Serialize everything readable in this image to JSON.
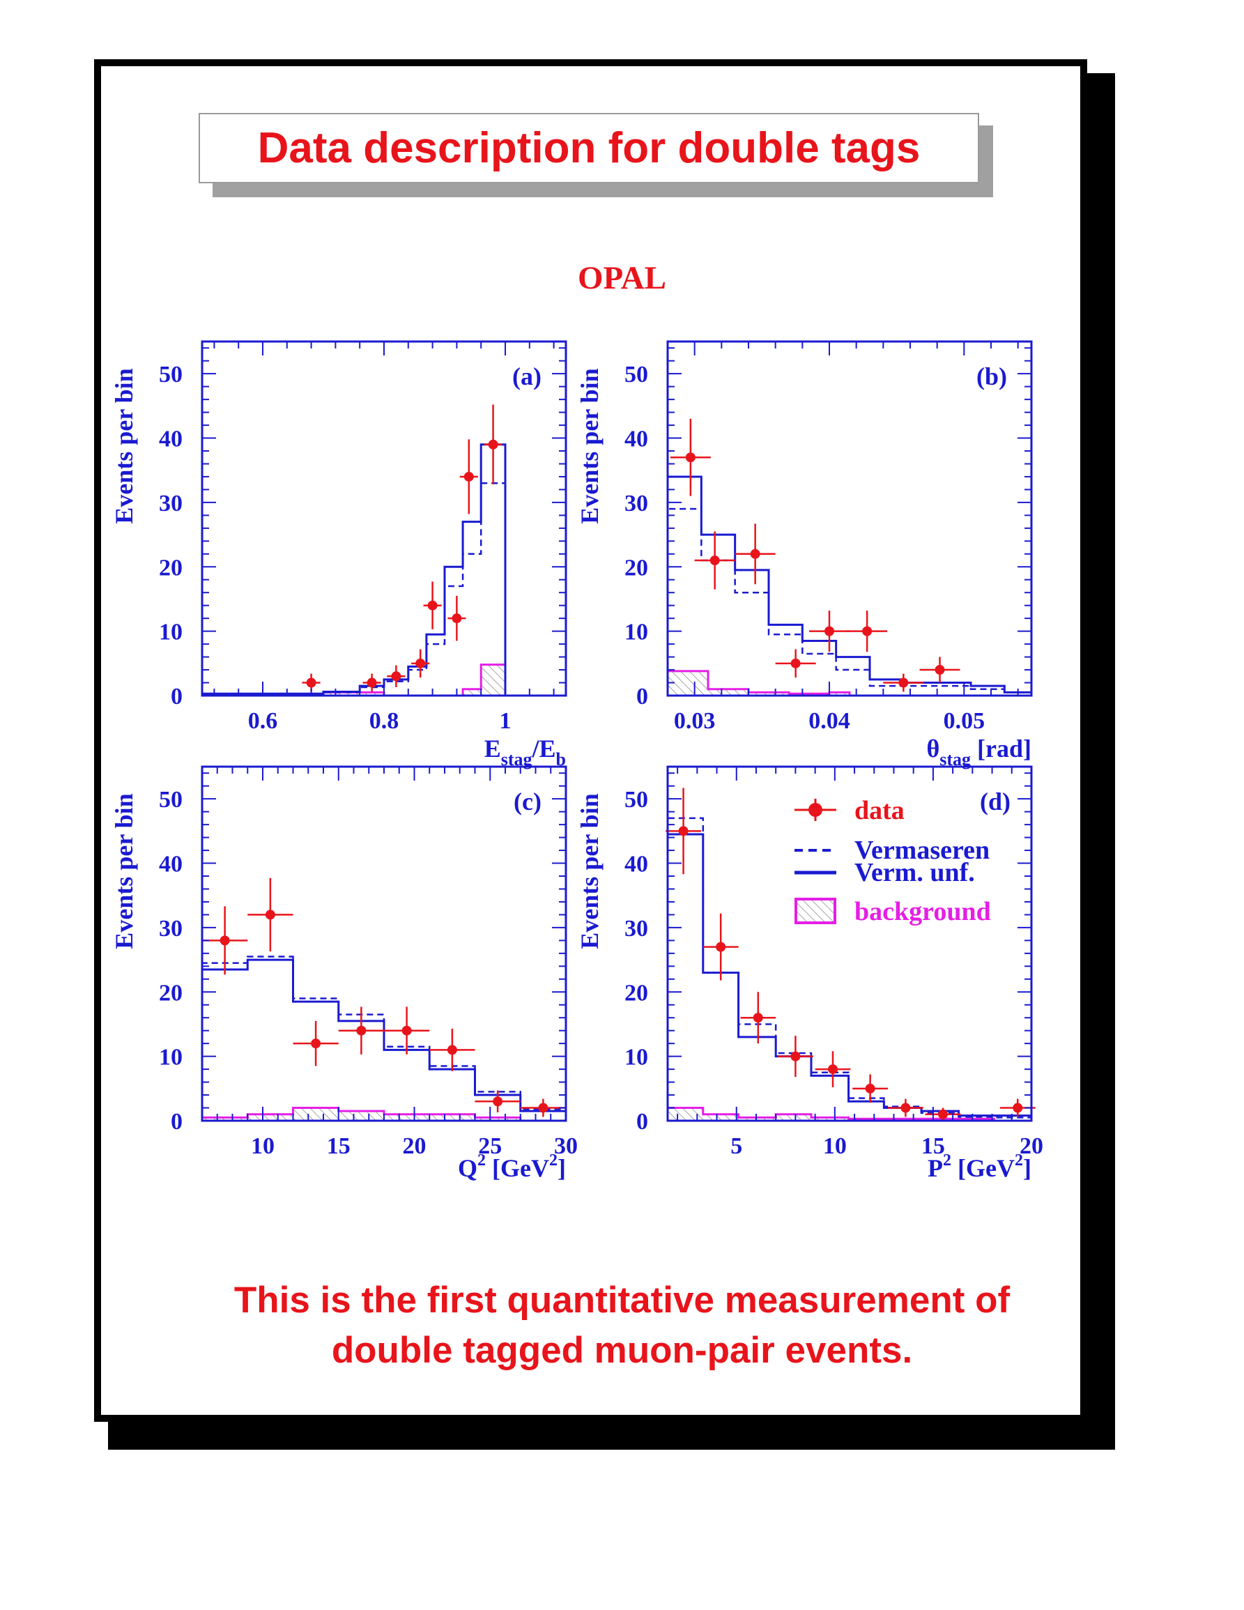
{
  "title": "Data description for double tags",
  "experiment": "OPAL",
  "footer": {
    "line1": "This is the first quantitative measurement of",
    "line2": "double tagged muon-pair events."
  },
  "colors": {
    "data": "#e8141b",
    "mc": "#1a1ad0",
    "background": "#e61ee6",
    "text_red": "#e8141b"
  },
  "legend": {
    "data": "data",
    "vermaseren": "Vermaseren",
    "verm_unf": "Verm. unf.",
    "background": "background"
  },
  "chart_data": [
    {
      "type": "bar",
      "panel_label": "(a)",
      "ylabel": "Events per bin",
      "xlabel": "E_stag/E_b",
      "xlim": [
        0.5,
        1.1
      ],
      "ylim": [
        0,
        55
      ],
      "xticks": [
        0.6,
        0.8,
        1
      ],
      "xtick_labels": [
        "0.6",
        "0.8",
        "1"
      ],
      "yticks": [
        0,
        10,
        20,
        30,
        40,
        50
      ],
      "data": {
        "x": [
          0.68,
          0.78,
          0.82,
          0.86,
          0.88,
          0.94,
          0.92,
          0.98
        ],
        "y": [
          2,
          2,
          3,
          5,
          14,
          34,
          12,
          39
        ],
        "xerr": [
          0.015,
          0.015,
          0.015,
          0.015,
          0.015,
          0.015,
          0.015,
          0.015
        ],
        "yerr": [
          1.4,
          1.4,
          1.7,
          2.2,
          3.7,
          5.8,
          3.5,
          6.2
        ]
      },
      "verm_unf": {
        "edges": [
          0.5,
          0.7,
          0.76,
          0.8,
          0.84,
          0.87,
          0.9,
          0.93,
          0.96,
          1.0,
          1.1
        ],
        "values": [
          0.3,
          0.6,
          1.5,
          2.5,
          4.5,
          9.5,
          20,
          27,
          39,
          0
        ]
      },
      "vermaseren": {
        "edges": [
          0.5,
          0.7,
          0.76,
          0.8,
          0.84,
          0.87,
          0.9,
          0.93,
          0.96,
          1.0,
          1.1
        ],
        "values": [
          0.2,
          0.5,
          1.3,
          2.2,
          4,
          8,
          17,
          22,
          33,
          0
        ]
      },
      "background": {
        "edges": [
          0.7,
          0.8,
          0.93,
          0.96,
          1.0
        ],
        "values": [
          0.5,
          0,
          1,
          4.8
        ]
      }
    },
    {
      "type": "bar",
      "panel_label": "(b)",
      "ylabel": "Events per bin",
      "xlabel": "θ_stag [rad]",
      "xlim": [
        0.028,
        0.055
      ],
      "ylim": [
        0,
        55
      ],
      "xticks": [
        0.03,
        0.04,
        0.05
      ],
      "xtick_labels": [
        "0.03",
        "0.04",
        "0.05"
      ],
      "yticks": [
        0,
        10,
        20,
        30,
        40,
        50
      ],
      "data": {
        "x": [
          0.0297,
          0.0315,
          0.0345,
          0.0375,
          0.04,
          0.0428,
          0.0455,
          0.0482
        ],
        "y": [
          37,
          21,
          22,
          5,
          10,
          10,
          2,
          4
        ],
        "xerr": [
          0.0015,
          0.0015,
          0.0015,
          0.0015,
          0.0015,
          0.0015,
          0.0015,
          0.0015
        ],
        "yerr": [
          6,
          4.5,
          4.7,
          2.2,
          3.2,
          3.2,
          1.4,
          2
        ]
      },
      "verm_unf": {
        "edges": [
          0.028,
          0.0305,
          0.033,
          0.0355,
          0.038,
          0.0405,
          0.043,
          0.0455,
          0.048,
          0.0505,
          0.053,
          0.055
        ],
        "values": [
          34,
          25,
          19.5,
          11,
          8.5,
          6,
          2.5,
          2,
          2,
          1.5,
          0.5
        ]
      },
      "vermaseren": {
        "edges": [
          0.028,
          0.0305,
          0.033,
          0.0355,
          0.038,
          0.0405,
          0.043,
          0.0455,
          0.048,
          0.0505,
          0.053,
          0.055
        ],
        "values": [
          29,
          21,
          16,
          9.5,
          6.5,
          4,
          1.5,
          1.5,
          1.5,
          1,
          0.5
        ]
      },
      "background": {
        "edges": [
          0.028,
          0.031,
          0.034,
          0.037,
          0.04,
          0.0415
        ],
        "values": [
          3.8,
          1,
          0.5,
          0.3,
          0.5
        ]
      }
    },
    {
      "type": "bar",
      "panel_label": "(c)",
      "ylabel": "Events per bin",
      "xlabel": "Q² [GeV²]",
      "xlim": [
        6,
        30
      ],
      "ylim": [
        0,
        55
      ],
      "xticks": [
        10,
        15,
        20,
        25,
        30
      ],
      "xtick_labels": [
        "10",
        "15",
        "20",
        "25",
        "30"
      ],
      "yticks": [
        0,
        10,
        20,
        30,
        40,
        50
      ],
      "data": {
        "x": [
          7.5,
          10.5,
          13.5,
          16.5,
          19.5,
          22.5,
          25.5,
          28.5
        ],
        "y": [
          28,
          32,
          12,
          14,
          14,
          11,
          3,
          2
        ],
        "xerr": [
          1.5,
          1.5,
          1.5,
          1.5,
          1.5,
          1.5,
          1.5,
          1.5
        ],
        "yerr": [
          5.3,
          5.7,
          3.5,
          3.7,
          3.7,
          3.3,
          1.7,
          1.4
        ]
      },
      "verm_unf": {
        "edges": [
          6,
          9,
          12,
          15,
          18,
          21,
          24,
          27,
          30
        ],
        "values": [
          23.5,
          25,
          18.5,
          15.5,
          11,
          8,
          4,
          1.5
        ]
      },
      "vermaseren": {
        "edges": [
          6,
          9,
          12,
          15,
          18,
          21,
          24,
          27,
          30
        ],
        "values": [
          24.5,
          25.5,
          19,
          16.5,
          11.5,
          8.5,
          4.5,
          1.8
        ]
      },
      "background": {
        "edges": [
          6,
          9,
          12,
          15,
          18,
          21,
          24,
          27
        ],
        "values": [
          0.5,
          1,
          2,
          1.5,
          1,
          1,
          0.5
        ]
      }
    },
    {
      "type": "bar",
      "panel_label": "(d)",
      "ylabel": "Events per bin",
      "xlabel": "P² [GeV²]",
      "xlim": [
        1.5,
        20
      ],
      "ylim": [
        0,
        55
      ],
      "xticks": [
        5,
        10,
        15,
        20
      ],
      "xtick_labels": [
        "5",
        "10",
        "15",
        "20"
      ],
      "yticks": [
        0,
        10,
        20,
        30,
        40,
        50
      ],
      "data": {
        "x": [
          2.3,
          4.2,
          6.1,
          8.0,
          9.9,
          11.8,
          13.6,
          15.5,
          19.3
        ],
        "y": [
          45,
          27,
          16,
          10,
          8,
          5,
          2,
          1,
          2
        ],
        "xerr": [
          0.9,
          0.9,
          0.9,
          0.9,
          0.9,
          0.9,
          0.9,
          0.9,
          0.9
        ],
        "yerr": [
          6.7,
          5.2,
          4,
          3.2,
          2.8,
          2.2,
          1.4,
          1,
          1.4
        ]
      },
      "verm_unf": {
        "edges": [
          1.5,
          3.3,
          5.1,
          7,
          8.8,
          10.7,
          12.5,
          14.4,
          16.3,
          18.1,
          20
        ],
        "values": [
          44.5,
          23,
          13,
          10,
          7,
          3,
          2,
          1.5,
          0.8,
          0.8
        ]
      },
      "vermaseren": {
        "edges": [
          1.5,
          3.3,
          5.1,
          7,
          8.8,
          10.7,
          12.5,
          14.4,
          16.3,
          18.1,
          20
        ],
        "values": [
          47,
          23,
          15,
          10.5,
          7.5,
          3.5,
          2.2,
          1.2,
          0.6,
          0.5
        ]
      },
      "background": {
        "edges": [
          1.5,
          3.3,
          5.1,
          7,
          8.8,
          10.7,
          14.4,
          18.1
        ],
        "values": [
          2,
          1,
          0.5,
          1,
          0.5,
          0.3,
          0.3
        ]
      }
    }
  ]
}
